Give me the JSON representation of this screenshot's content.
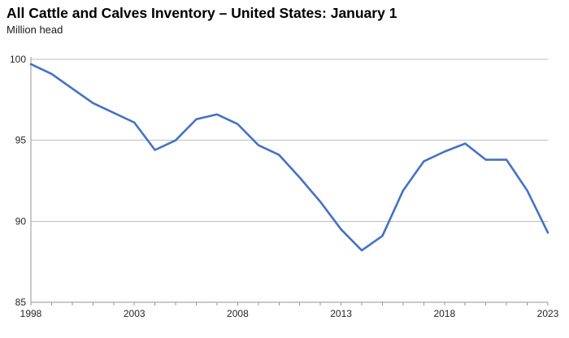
{
  "header": {
    "title": "All Cattle and Calves Inventory – United States: January 1",
    "subtitle": "Million head"
  },
  "chart_data": {
    "type": "line",
    "title": "All Cattle and Calves Inventory – United States: January 1",
    "ylabel": "Million head",
    "series_name": "All cattle and calves inventory",
    "x": [
      1998,
      1999,
      2000,
      2001,
      2002,
      2003,
      2004,
      2005,
      2006,
      2007,
      2008,
      2009,
      2010,
      2011,
      2012,
      2013,
      2014,
      2015,
      2016,
      2017,
      2018,
      2019,
      2020,
      2021,
      2022,
      2023
    ],
    "values": [
      99.7,
      99.1,
      98.2,
      97.3,
      96.7,
      96.1,
      94.4,
      95.0,
      96.3,
      96.6,
      96.0,
      94.7,
      94.1,
      92.7,
      91.2,
      89.5,
      88.2,
      89.1,
      91.9,
      93.7,
      94.3,
      94.8,
      93.8,
      93.8,
      91.9,
      89.3
    ],
    "ylim": [
      85,
      100
    ],
    "yticks": [
      85,
      90,
      95,
      100
    ],
    "xtick_labels": [
      1998,
      2003,
      2008,
      2013,
      2018,
      2023
    ],
    "grid": "horizontal",
    "legend": "none",
    "line_color": "#4472C4",
    "gridline_color": "#bfbfbf",
    "axis_color": "#959595",
    "tick_label_color": "#262626"
  }
}
